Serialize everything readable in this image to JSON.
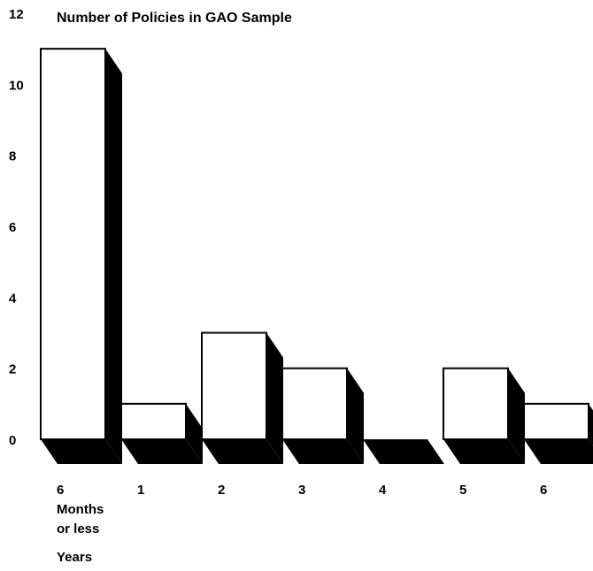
{
  "chart_data": {
    "type": "bar",
    "title": "Number of Policies in GAO Sample",
    "xlabel": "Years",
    "ylabel": "",
    "ylim": [
      0,
      12
    ],
    "yticks": [
      0,
      2,
      4,
      6,
      8,
      10,
      12
    ],
    "grid": false,
    "legend": "none",
    "categories": [
      {
        "label": "6",
        "sub": [
          "Months",
          "or less"
        ]
      },
      {
        "label": "1"
      },
      {
        "label": "2"
      },
      {
        "label": "3"
      },
      {
        "label": "4"
      },
      {
        "label": "5"
      },
      {
        "label": "6"
      }
    ],
    "values": [
      11,
      1,
      3,
      2,
      0,
      2,
      1
    ],
    "colors": {
      "bar_fill": "#ffffff",
      "bar_stroke": "#000000",
      "shadow": "#000000",
      "text": "#000000"
    }
  }
}
